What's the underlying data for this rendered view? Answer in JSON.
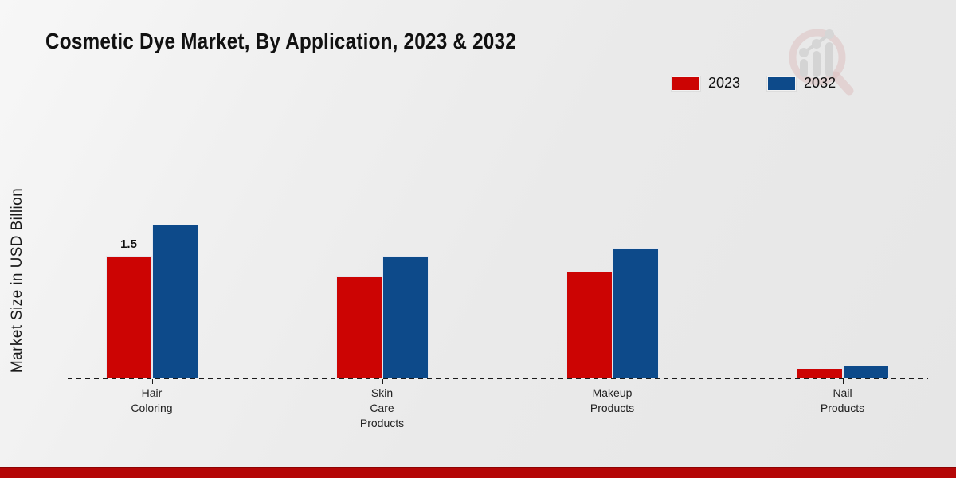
{
  "page": {
    "title": "Cosmetic Dye Market, By Application, 2023 & 2032",
    "ylabel": "Market Size in USD Billion"
  },
  "watermark": {
    "icon": "magnifier-growth-chart-logo"
  },
  "footer": {
    "band_color": "#b40606"
  },
  "chart_data": {
    "type": "bar",
    "title": "Cosmetic Dye Market, By Application, 2023 & 2032",
    "xlabel": "",
    "ylabel": "Market Size in USD Billion",
    "unit": "USD Billion",
    "categories": [
      "Hair Coloring",
      "Skin Care Products",
      "Makeup Products",
      "Nail Products"
    ],
    "category_label_lines": [
      [
        "Hair",
        "Coloring"
      ],
      [
        "Skin",
        "Care",
        "Products"
      ],
      [
        "Makeup",
        "Products"
      ],
      [
        "Nail",
        "Products"
      ]
    ],
    "series": [
      {
        "name": "2023",
        "color": "#cc0403",
        "values": [
          1.5,
          1.25,
          1.3,
          0.13
        ],
        "bar_labels": [
          "1.5",
          "",
          "",
          ""
        ]
      },
      {
        "name": "2032",
        "color": "#0d4a8a",
        "values": [
          1.88,
          1.5,
          1.6,
          0.16
        ],
        "bar_labels": [
          "",
          "",
          "",
          ""
        ]
      }
    ],
    "ylim": [
      0,
      2.0
    ],
    "grid": false,
    "baseline_style": "dashed",
    "legend_position": "top-right"
  }
}
